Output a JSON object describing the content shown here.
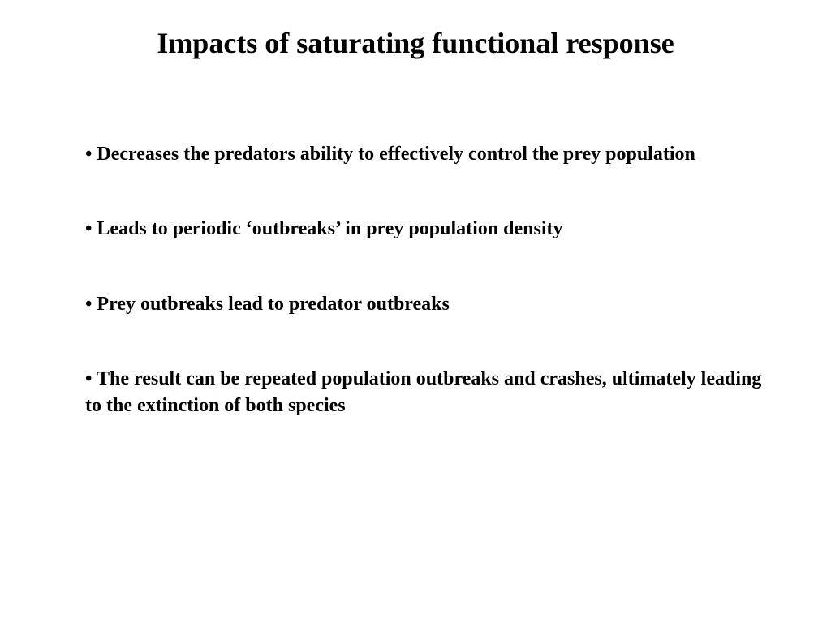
{
  "slide": {
    "title": "Impacts of saturating functional response",
    "bullets": [
      "Decreases the predators ability to effectively control the prey population",
      "Leads to periodic ‘outbreaks’ in prey population density",
      "Prey outbreaks lead to predator outbreaks",
      "The result can be repeated population outbreaks and crashes, ultimately leading to the extinction of both species"
    ]
  },
  "colors": {
    "background": "#ffffff",
    "text": "#000000"
  },
  "typography": {
    "title_fontsize": 36,
    "bullet_fontsize": 24,
    "font_family": "Times New Roman",
    "font_weight": "bold"
  }
}
